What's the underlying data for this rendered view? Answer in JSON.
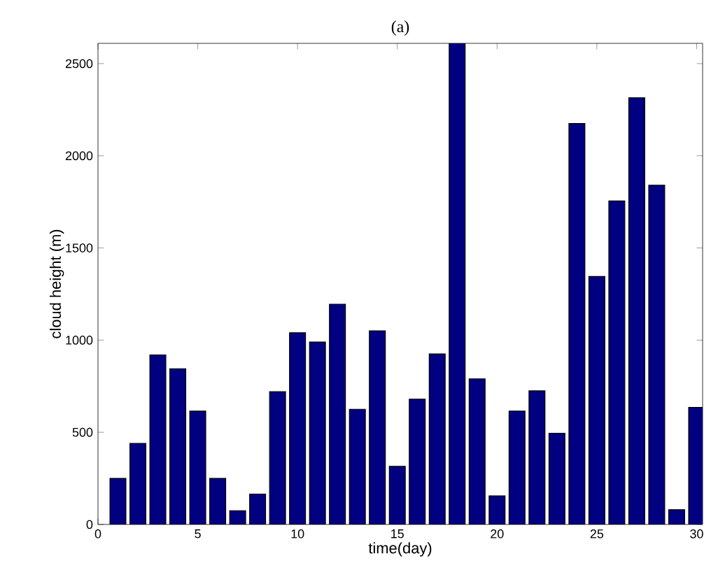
{
  "chart_data": {
    "type": "bar",
    "title": "(a)",
    "xlabel": "time(day)",
    "ylabel": "cloud height (m)",
    "x": [
      1,
      2,
      3,
      4,
      5,
      6,
      7,
      8,
      9,
      10,
      11,
      12,
      13,
      14,
      15,
      16,
      17,
      18,
      19,
      20,
      21,
      22,
      23,
      24,
      25,
      26,
      27,
      28,
      29,
      30
    ],
    "values": [
      250,
      440,
      920,
      845,
      615,
      250,
      75,
      165,
      720,
      1040,
      990,
      1195,
      625,
      1050,
      315,
      680,
      925,
      2610,
      790,
      155,
      615,
      725,
      495,
      2175,
      1345,
      1755,
      2315,
      1840,
      80,
      635
    ],
    "color": "#000080",
    "xlim": [
      0,
      30.3
    ],
    "ylim": [
      0,
      2610
    ],
    "xticks": [
      0,
      5,
      10,
      15,
      20,
      25,
      30
    ],
    "yticks": [
      0,
      500,
      1000,
      1500,
      2000,
      2500
    ],
    "grid": false
  }
}
